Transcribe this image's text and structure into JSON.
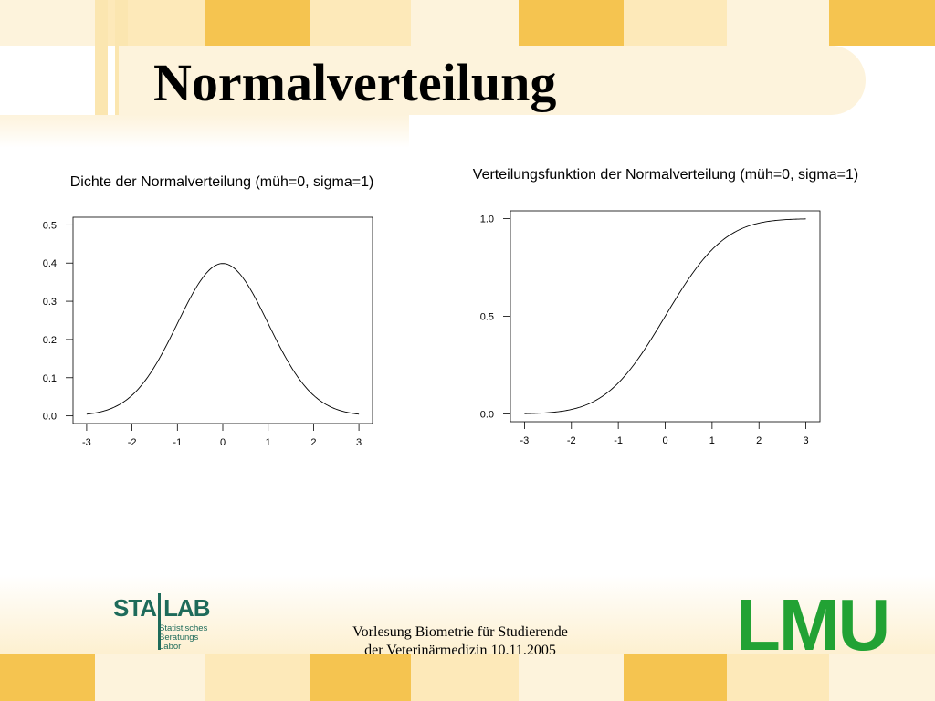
{
  "slide": {
    "title": "Normalverteilung",
    "footer_line1": "Vorlesung Biometrie für Studierende",
    "footer_line2": "der Veterinärmedizin 10.11.2005"
  },
  "logos": {
    "stablab_left": "STA",
    "stablab_right": "LAB",
    "stablab_sub": [
      "Statistisches",
      "Beratungs",
      "Labor"
    ],
    "lmu": "LMU"
  },
  "colors": {
    "tile_light": "#fde9b9",
    "tile_dark": "#f5c450",
    "tile_pale": "#fdf3dc",
    "stablab_green": "#1e6b5a",
    "lmu_green": "#22a234"
  },
  "chart_data": [
    {
      "type": "line",
      "title": "Dichte der Normalverteilung (müh=0, sigma=1)",
      "xlabel": "",
      "ylabel": "",
      "function": "standard normal density",
      "x": [
        -3,
        -2.5,
        -2,
        -1.5,
        -1,
        -0.5,
        0,
        0.5,
        1,
        1.5,
        2,
        2.5,
        3
      ],
      "y": [
        0.0044,
        0.0175,
        0.054,
        0.1295,
        0.242,
        0.3521,
        0.3989,
        0.3521,
        0.242,
        0.1295,
        0.054,
        0.0175,
        0.0044
      ],
      "xlim": [
        -3.3,
        3.3
      ],
      "ylim": [
        -0.02,
        0.52
      ],
      "xticks": [
        "-3",
        "-2",
        "-1",
        "0",
        "1",
        "2",
        "3"
      ],
      "yticks": [
        "0.0",
        "0.1",
        "0.2",
        "0.3",
        "0.4",
        "0.5"
      ],
      "grid": false
    },
    {
      "type": "line",
      "title": "Verteilungsfunktion der Normalverteilung (müh=0, sigma=1)",
      "xlabel": "",
      "ylabel": "",
      "function": "standard normal cumulative distribution",
      "x": [
        -3,
        -2.5,
        -2,
        -1.5,
        -1,
        -0.5,
        0,
        0.5,
        1,
        1.5,
        2,
        2.5,
        3
      ],
      "y": [
        0.0013,
        0.0062,
        0.0228,
        0.0668,
        0.1587,
        0.3085,
        0.5,
        0.6915,
        0.8413,
        0.9332,
        0.9772,
        0.9938,
        0.9987
      ],
      "xlim": [
        -3.3,
        3.3
      ],
      "ylim": [
        -0.04,
        1.04
      ],
      "xticks": [
        "-3",
        "-2",
        "-1",
        "0",
        "1",
        "2",
        "3"
      ],
      "yticks": [
        "0.0",
        "0.5",
        "1.0"
      ],
      "grid": false
    }
  ]
}
